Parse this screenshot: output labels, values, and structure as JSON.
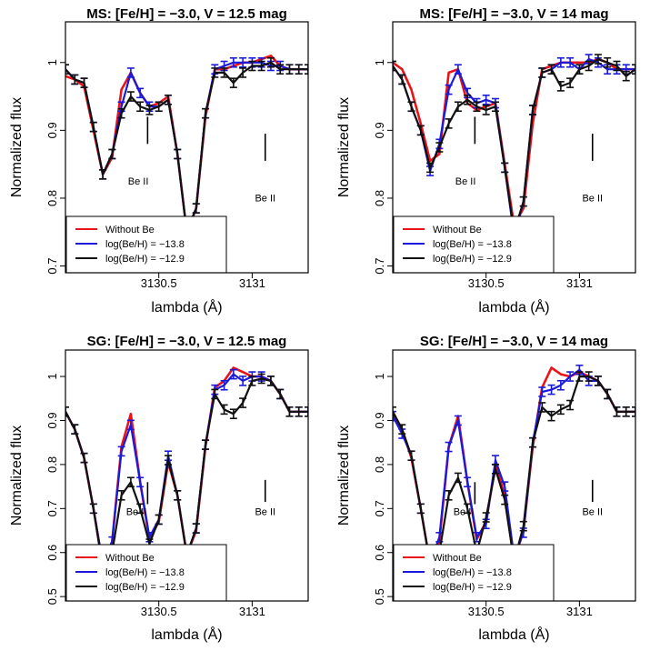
{
  "colors": {
    "without_be": "#e8141a",
    "be_138": "#1a1adb",
    "be_129": "#111111"
  },
  "axis_labels": {
    "x": "lambda (Å)",
    "y": "Normalized flux"
  },
  "x_ticks": [
    {
      "v": 3130.5,
      "label": "3130.5"
    },
    {
      "v": 3131,
      "label": "3131"
    }
  ],
  "legend_entries": [
    "Without Be",
    "log(Be/H) = −13.8",
    "log(Be/H) = −12.9"
  ],
  "annotation_label": "Be II",
  "chart_data": [
    {
      "type": "line",
      "title": "MS: [Fe/H] = −3.0, V = 12.5 mag",
      "xlabel": "lambda (Å)",
      "ylabel": "Normalized flux",
      "xlim": [
        3130.0,
        3131.3
      ],
      "ylim": [
        0.69,
        1.06
      ],
      "y_ticks": [
        0.7,
        0.8,
        0.9,
        1.0
      ],
      "y_tick_labels": [
        "0.7",
        "0.8",
        "0.9",
        "1"
      ],
      "legend": "bottom-left",
      "grid": false,
      "be_marks": [
        {
          "x": 3130.44,
          "y1": 0.88,
          "y2": 0.92,
          "label": "Be II",
          "lx": 3130.39,
          "ly": 0.82
        },
        {
          "x": 3131.07,
          "y1": 0.855,
          "y2": 0.895,
          "label": "Be II",
          "lx": 3131.07,
          "ly": 0.795
        }
      ],
      "series": [
        {
          "name": "Without Be",
          "color": "#e8141a",
          "errorbars": false,
          "x": [
            3130.0,
            3130.05,
            3130.1,
            3130.15,
            3130.2,
            3130.25,
            3130.3,
            3130.35,
            3130.4,
            3130.45,
            3130.5,
            3130.55,
            3130.6,
            3130.65,
            3130.7,
            3130.75,
            3130.8,
            3130.85,
            3130.9,
            3130.95,
            3131.0,
            3131.05,
            3131.1,
            3131.15,
            3131.2,
            3131.25,
            3131.3
          ],
          "y": [
            0.98,
            0.975,
            0.965,
            0.9,
            0.835,
            0.86,
            0.96,
            0.985,
            0.955,
            0.935,
            0.94,
            0.95,
            0.865,
            0.75,
            0.785,
            0.92,
            0.99,
            0.99,
            0.995,
            1.0,
            1.0,
            1.005,
            1.01,
            0.995,
            0.99,
            0.99,
            0.99
          ]
        },
        {
          "name": "log(Be/H) = −13.8",
          "color": "#1a1adb",
          "errorbars": true,
          "x": [
            3130.0,
            3130.05,
            3130.1,
            3130.15,
            3130.2,
            3130.25,
            3130.3,
            3130.35,
            3130.4,
            3130.45,
            3130.5,
            3130.55,
            3130.6,
            3130.65,
            3130.7,
            3130.75,
            3130.8,
            3130.85,
            3130.9,
            3130.95,
            3131.0,
            3131.05,
            3131.1,
            3131.15,
            3131.2,
            3131.25,
            3131.3
          ],
          "y": [
            0.99,
            0.975,
            0.97,
            0.905,
            0.835,
            0.865,
            0.935,
            0.985,
            0.955,
            0.935,
            0.935,
            0.945,
            0.865,
            0.75,
            0.785,
            0.925,
            0.99,
            0.995,
            1.0,
            1.0,
            1.0,
            1.0,
            0.995,
            0.995,
            0.99,
            0.99,
            0.99
          ]
        },
        {
          "name": "log(Be/H) = −12.9",
          "color": "#111111",
          "errorbars": true,
          "x": [
            3130.0,
            3130.05,
            3130.1,
            3130.15,
            3130.2,
            3130.25,
            3130.3,
            3130.35,
            3130.4,
            3130.45,
            3130.5,
            3130.55,
            3130.6,
            3130.65,
            3130.7,
            3130.75,
            3130.8,
            3130.85,
            3130.9,
            3130.95,
            3131.0,
            3131.05,
            3131.1,
            3131.15,
            3131.2,
            3131.25,
            3131.3
          ],
          "y": [
            0.99,
            0.975,
            0.97,
            0.905,
            0.835,
            0.865,
            0.925,
            0.95,
            0.935,
            0.93,
            0.935,
            0.945,
            0.865,
            0.75,
            0.785,
            0.925,
            0.985,
            0.985,
            0.97,
            0.985,
            0.995,
            0.995,
            1.0,
            0.99,
            0.99,
            0.99,
            0.99
          ]
        }
      ]
    },
    {
      "type": "line",
      "title": "MS: [Fe/H] = −3.0, V = 14 mag",
      "xlabel": "lambda (Å)",
      "ylabel": "Normalized flux",
      "xlim": [
        3130.0,
        3131.3
      ],
      "ylim": [
        0.69,
        1.06
      ],
      "y_ticks": [
        0.7,
        0.8,
        0.9,
        1.0
      ],
      "y_tick_labels": [
        "0.7",
        "0.8",
        "0.9",
        "1"
      ],
      "legend": "bottom-left",
      "grid": false,
      "be_marks": [
        {
          "x": 3130.44,
          "y1": 0.88,
          "y2": 0.92,
          "label": "Be II",
          "lx": 3130.39,
          "ly": 0.82
        },
        {
          "x": 3131.07,
          "y1": 0.855,
          "y2": 0.895,
          "label": "Be II",
          "lx": 3131.07,
          "ly": 0.795
        }
      ],
      "series": [
        {
          "name": "Without Be",
          "color": "#e8141a",
          "errorbars": false,
          "x": [
            3130.0,
            3130.05,
            3130.1,
            3130.15,
            3130.2,
            3130.25,
            3130.3,
            3130.35,
            3130.4,
            3130.45,
            3130.5,
            3130.55,
            3130.6,
            3130.65,
            3130.7,
            3130.75,
            3130.8,
            3130.85,
            3130.9,
            3130.95,
            3131.0,
            3131.05,
            3131.1,
            3131.15,
            3131.2,
            3131.25,
            3131.3
          ],
          "y": [
            1.0,
            0.99,
            0.96,
            0.91,
            0.855,
            0.865,
            0.985,
            0.99,
            0.94,
            0.93,
            0.935,
            0.94,
            0.85,
            0.76,
            0.785,
            0.91,
            0.99,
            0.995,
            1.0,
            1.0,
            1.0,
            1.0,
            1.005,
            1.0,
            0.99,
            0.99,
            0.99
          ]
        },
        {
          "name": "log(Be/H) = −13.8",
          "color": "#1a1adb",
          "errorbars": true,
          "x": [
            3130.0,
            3130.05,
            3130.1,
            3130.15,
            3130.2,
            3130.25,
            3130.3,
            3130.35,
            3130.4,
            3130.45,
            3130.5,
            3130.55,
            3130.6,
            3130.65,
            3130.7,
            3130.75,
            3130.8,
            3130.85,
            3130.9,
            3130.95,
            3131.0,
            3131.05,
            3131.1,
            3131.15,
            3131.2,
            3131.25,
            3131.3
          ],
          "y": [
            0.995,
            0.975,
            0.935,
            0.9,
            0.84,
            0.88,
            0.96,
            0.99,
            0.955,
            0.94,
            0.945,
            0.94,
            0.845,
            0.745,
            0.795,
            0.93,
            0.985,
            0.99,
            1.0,
            1.0,
            0.99,
            1.005,
            1.0,
            0.99,
            0.99,
            0.99,
            0.99
          ]
        },
        {
          "name": "log(Be/H) = −12.9",
          "color": "#111111",
          "errorbars": true,
          "x": [
            3130.0,
            3130.05,
            3130.1,
            3130.15,
            3130.2,
            3130.25,
            3130.3,
            3130.35,
            3130.4,
            3130.45,
            3130.5,
            3130.55,
            3130.6,
            3130.65,
            3130.7,
            3130.75,
            3130.8,
            3130.85,
            3130.9,
            3130.95,
            3131.0,
            3131.05,
            3131.1,
            3131.15,
            3131.2,
            3131.25,
            3131.3
          ],
          "y": [
            0.995,
            0.975,
            0.935,
            0.9,
            0.845,
            0.875,
            0.91,
            0.935,
            0.945,
            0.935,
            0.93,
            0.935,
            0.845,
            0.75,
            0.795,
            0.93,
            0.985,
            0.99,
            0.965,
            0.97,
            0.99,
            0.995,
            1.005,
            1.0,
            0.995,
            0.98,
            0.99
          ]
        }
      ]
    },
    {
      "type": "line",
      "title": "SG: [Fe/H] = −3.0, V = 12.5 mag",
      "xlabel": "lambda (Å)",
      "ylabel": "Normalized flux",
      "xlim": [
        3130.0,
        3131.3
      ],
      "ylim": [
        0.49,
        1.06
      ],
      "y_ticks": [
        0.5,
        0.6,
        0.7,
        0.8,
        0.9,
        1.0
      ],
      "y_tick_labels": [
        "0.5",
        "0.6",
        "0.7",
        "0.8",
        "0.9",
        "1"
      ],
      "legend": "bottom-left",
      "grid": false,
      "be_marks": [
        {
          "x": 3130.44,
          "y1": 0.71,
          "y2": 0.76,
          "label": "Be II",
          "lx": 3130.38,
          "ly": 0.685
        },
        {
          "x": 3131.07,
          "y1": 0.715,
          "y2": 0.765,
          "label": "Be II",
          "lx": 3131.07,
          "ly": 0.685
        }
      ],
      "series": [
        {
          "name": "Without Be",
          "color": "#e8141a",
          "errorbars": false,
          "x": [
            3130.0,
            3130.05,
            3130.1,
            3130.15,
            3130.2,
            3130.25,
            3130.3,
            3130.35,
            3130.4,
            3130.45,
            3130.5,
            3130.55,
            3130.6,
            3130.65,
            3130.7,
            3130.75,
            3130.8,
            3130.85,
            3130.9,
            3130.95,
            3131.0,
            3131.05,
            3131.1,
            3131.15,
            3131.2,
            3131.25,
            3131.3
          ],
          "y": [
            0.92,
            0.88,
            0.815,
            0.7,
            0.57,
            0.625,
            0.84,
            0.915,
            0.76,
            0.63,
            0.67,
            0.805,
            0.73,
            0.595,
            0.65,
            0.84,
            0.975,
            0.99,
            1.02,
            1.01,
            1.0,
            1.0,
            0.99,
            0.96,
            0.92,
            0.92,
            0.92
          ]
        },
        {
          "name": "log(Be/H) = −13.8",
          "color": "#1a1adb",
          "errorbars": true,
          "x": [
            3130.0,
            3130.05,
            3130.1,
            3130.15,
            3130.2,
            3130.25,
            3130.3,
            3130.35,
            3130.4,
            3130.45,
            3130.5,
            3130.55,
            3130.6,
            3130.65,
            3130.7,
            3130.75,
            3130.8,
            3130.85,
            3130.9,
            3130.95,
            3131.0,
            3131.05,
            3131.1,
            3131.15,
            3131.2,
            3131.25,
            3131.3
          ],
          "y": [
            0.92,
            0.88,
            0.815,
            0.7,
            0.575,
            0.625,
            0.83,
            0.89,
            0.76,
            0.635,
            0.675,
            0.82,
            0.73,
            0.595,
            0.655,
            0.845,
            0.97,
            0.98,
            1.005,
            0.99,
            1.0,
            1.0,
            0.99,
            0.96,
            0.92,
            0.92,
            0.92
          ]
        },
        {
          "name": "log(Be/H) = −12.9",
          "color": "#111111",
          "errorbars": true,
          "x": [
            3130.0,
            3130.05,
            3130.1,
            3130.15,
            3130.2,
            3130.25,
            3130.3,
            3130.35,
            3130.4,
            3130.45,
            3130.5,
            3130.55,
            3130.6,
            3130.65,
            3130.7,
            3130.75,
            3130.8,
            3130.85,
            3130.9,
            3130.95,
            3131.0,
            3131.05,
            3131.1,
            3131.15,
            3131.2,
            3131.25,
            3131.3
          ],
          "y": [
            0.92,
            0.88,
            0.815,
            0.7,
            0.565,
            0.6,
            0.73,
            0.76,
            0.7,
            0.62,
            0.675,
            0.81,
            0.73,
            0.595,
            0.655,
            0.845,
            0.96,
            0.925,
            0.915,
            0.94,
            0.99,
            0.995,
            0.99,
            0.96,
            0.92,
            0.92,
            0.92
          ]
        }
      ]
    },
    {
      "type": "line",
      "title": "SG: [Fe/H] = −3.0, V = 14 mag",
      "xlabel": "lambda (Å)",
      "ylabel": "Normalized flux",
      "xlim": [
        3130.0,
        3131.3
      ],
      "ylim": [
        0.49,
        1.06
      ],
      "y_ticks": [
        0.5,
        0.6,
        0.7,
        0.8,
        0.9,
        1.0
      ],
      "y_tick_labels": [
        "0.5",
        "0.6",
        "0.7",
        "0.8",
        "0.9",
        "1"
      ],
      "legend": "bottom-left",
      "grid": false,
      "be_marks": [
        {
          "x": 3130.44,
          "y1": 0.71,
          "y2": 0.76,
          "label": "Be II",
          "lx": 3130.38,
          "ly": 0.685
        },
        {
          "x": 3131.07,
          "y1": 0.715,
          "y2": 0.765,
          "label": "Be II",
          "lx": 3131.07,
          "ly": 0.685
        }
      ],
      "series": [
        {
          "name": "Without Be",
          "color": "#e8141a",
          "errorbars": false,
          "x": [
            3130.0,
            3130.05,
            3130.1,
            3130.15,
            3130.2,
            3130.25,
            3130.3,
            3130.35,
            3130.4,
            3130.45,
            3130.5,
            3130.55,
            3130.6,
            3130.65,
            3130.7,
            3130.75,
            3130.8,
            3130.85,
            3130.9,
            3130.95,
            3131.0,
            3131.05,
            3131.1,
            3131.15,
            3131.2,
            3131.25,
            3131.3
          ],
          "y": [
            0.92,
            0.88,
            0.815,
            0.7,
            0.575,
            0.625,
            0.84,
            0.91,
            0.76,
            0.63,
            0.67,
            0.8,
            0.73,
            0.58,
            0.65,
            0.84,
            0.975,
            1.02,
            1.005,
            1.0,
            1.01,
            1.0,
            0.99,
            0.96,
            0.92,
            0.92,
            0.92
          ]
        },
        {
          "name": "log(Be/H) = −13.8",
          "color": "#1a1adb",
          "errorbars": true,
          "x": [
            3130.0,
            3130.05,
            3130.1,
            3130.15,
            3130.2,
            3130.25,
            3130.3,
            3130.35,
            3130.4,
            3130.45,
            3130.5,
            3130.55,
            3130.6,
            3130.65,
            3130.7,
            3130.75,
            3130.8,
            3130.85,
            3130.9,
            3130.95,
            3131.0,
            3131.05,
            3131.1,
            3131.15,
            3131.2,
            3131.25,
            3131.3
          ],
          "y": [
            0.91,
            0.87,
            0.82,
            0.7,
            0.575,
            0.635,
            0.84,
            0.9,
            0.76,
            0.635,
            0.665,
            0.81,
            0.75,
            0.59,
            0.645,
            0.85,
            0.965,
            0.97,
            0.98,
            1.0,
            1.015,
            0.99,
            0.99,
            0.96,
            0.92,
            0.92,
            0.92
          ]
        },
        {
          "name": "log(Be/H) = −12.9",
          "color": "#111111",
          "errorbars": true,
          "x": [
            3130.0,
            3130.05,
            3130.1,
            3130.15,
            3130.2,
            3130.25,
            3130.3,
            3130.35,
            3130.4,
            3130.45,
            3130.5,
            3130.55,
            3130.6,
            3130.65,
            3130.7,
            3130.75,
            3130.8,
            3130.85,
            3130.9,
            3130.95,
            3131.0,
            3131.05,
            3131.1,
            3131.15,
            3131.2,
            3131.25,
            3131.3
          ],
          "y": [
            0.92,
            0.88,
            0.82,
            0.7,
            0.575,
            0.6,
            0.73,
            0.77,
            0.7,
            0.6,
            0.68,
            0.79,
            0.72,
            0.58,
            0.66,
            0.85,
            0.93,
            0.91,
            0.925,
            0.935,
            1.0,
            1.0,
            0.99,
            0.96,
            0.92,
            0.92,
            0.92
          ]
        }
      ]
    }
  ]
}
